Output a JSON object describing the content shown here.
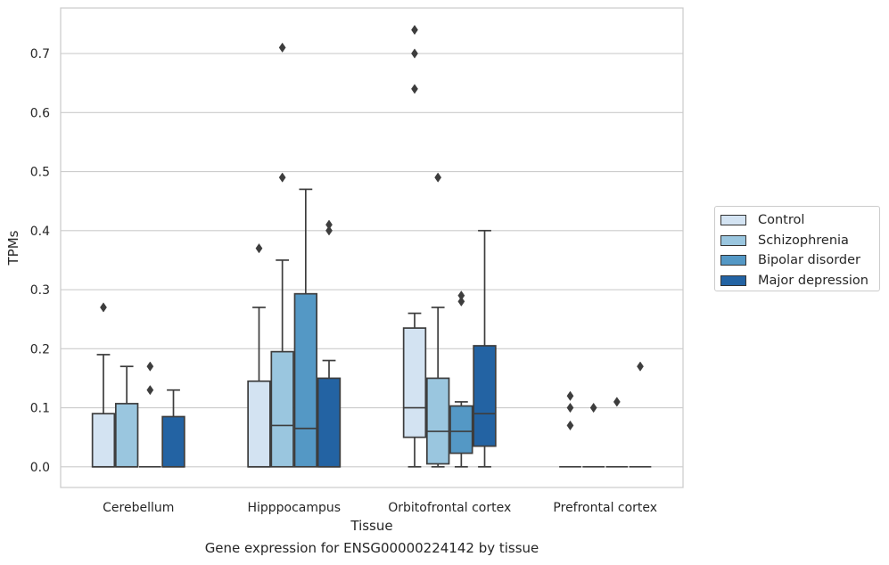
{
  "chart_data": {
    "type": "box",
    "xlabel": "Tissue",
    "ylabel": "TPMs",
    "caption": "Gene expression for ENSG00000224142 by tissue",
    "categories": [
      "Cerebellum",
      "Hipppocampus",
      "Orbitofrontal cortex",
      "Prefrontal cortex"
    ],
    "ylim": [
      -0.035,
      0.777
    ],
    "yticks": [
      0.0,
      0.1,
      0.2,
      0.3,
      0.4,
      0.5,
      0.6,
      0.7
    ],
    "ytick_labels": [
      "0.0",
      "0.1",
      "0.2",
      "0.3",
      "0.4",
      "0.5",
      "0.6",
      "0.7"
    ],
    "grid": "horizontal",
    "legend_position": "outside-right",
    "series": [
      {
        "name": "Control",
        "color": "#d3e3f2",
        "boxes": [
          {
            "q1": 0.0,
            "median": 0.0,
            "q3": 0.09,
            "whisker_low": 0.0,
            "whisker_high": 0.19,
            "outliers": [
              0.27
            ]
          },
          {
            "q1": 0.0,
            "median": 0.0,
            "q3": 0.145,
            "whisker_low": 0.0,
            "whisker_high": 0.27,
            "outliers": [
              0.37
            ]
          },
          {
            "q1": 0.05,
            "median": 0.1,
            "q3": 0.235,
            "whisker_low": 0.0,
            "whisker_high": 0.26,
            "outliers": [
              0.64,
              0.7,
              0.74
            ]
          },
          {
            "q1": 0.0,
            "median": 0.0,
            "q3": 0.0,
            "whisker_low": 0.0,
            "whisker_high": 0.0,
            "outliers": [
              0.07,
              0.1,
              0.12
            ]
          }
        ]
      },
      {
        "name": "Schizophrenia",
        "color": "#9ac6df",
        "boxes": [
          {
            "q1": 0.0,
            "median": 0.0,
            "q3": 0.107,
            "whisker_low": 0.0,
            "whisker_high": 0.17,
            "outliers": []
          },
          {
            "q1": 0.0,
            "median": 0.07,
            "q3": 0.195,
            "whisker_low": 0.0,
            "whisker_high": 0.35,
            "outliers": [
              0.49,
              0.71
            ]
          },
          {
            "q1": 0.005,
            "median": 0.06,
            "q3": 0.15,
            "whisker_low": 0.0,
            "whisker_high": 0.27,
            "outliers": [
              0.49
            ]
          },
          {
            "q1": 0.0,
            "median": 0.0,
            "q3": 0.0,
            "whisker_low": 0.0,
            "whisker_high": 0.0,
            "outliers": [
              0.1
            ]
          }
        ]
      },
      {
        "name": "Bipolar disorder",
        "color": "#5498c5",
        "boxes": [
          {
            "q1": 0.0,
            "median": 0.0,
            "q3": 0.0,
            "whisker_low": 0.0,
            "whisker_high": 0.0,
            "outliers": [
              0.13,
              0.17
            ]
          },
          {
            "q1": 0.0,
            "median": 0.065,
            "q3": 0.293,
            "whisker_low": 0.0,
            "whisker_high": 0.47,
            "outliers": []
          },
          {
            "q1": 0.023,
            "median": 0.06,
            "q3": 0.103,
            "whisker_low": 0.0,
            "whisker_high": 0.11,
            "outliers": [
              0.28,
              0.29
            ]
          },
          {
            "q1": 0.0,
            "median": 0.0,
            "q3": 0.0,
            "whisker_low": 0.0,
            "whisker_high": 0.0,
            "outliers": [
              0.11
            ]
          }
        ]
      },
      {
        "name": "Major depression",
        "color": "#2363a3",
        "boxes": [
          {
            "q1": 0.0,
            "median": 0.0,
            "q3": 0.085,
            "whisker_low": 0.0,
            "whisker_high": 0.13,
            "outliers": []
          },
          {
            "q1": 0.0,
            "median": 0.0,
            "q3": 0.15,
            "whisker_low": 0.0,
            "whisker_high": 0.18,
            "outliers": [
              0.4,
              0.41
            ]
          },
          {
            "q1": 0.035,
            "median": 0.09,
            "q3": 0.205,
            "whisker_low": 0.0,
            "whisker_high": 0.4,
            "outliers": []
          },
          {
            "q1": 0.0,
            "median": 0.0,
            "q3": 0.0,
            "whisker_low": 0.0,
            "whisker_high": 0.0,
            "outliers": [
              0.17
            ]
          }
        ]
      }
    ]
  }
}
